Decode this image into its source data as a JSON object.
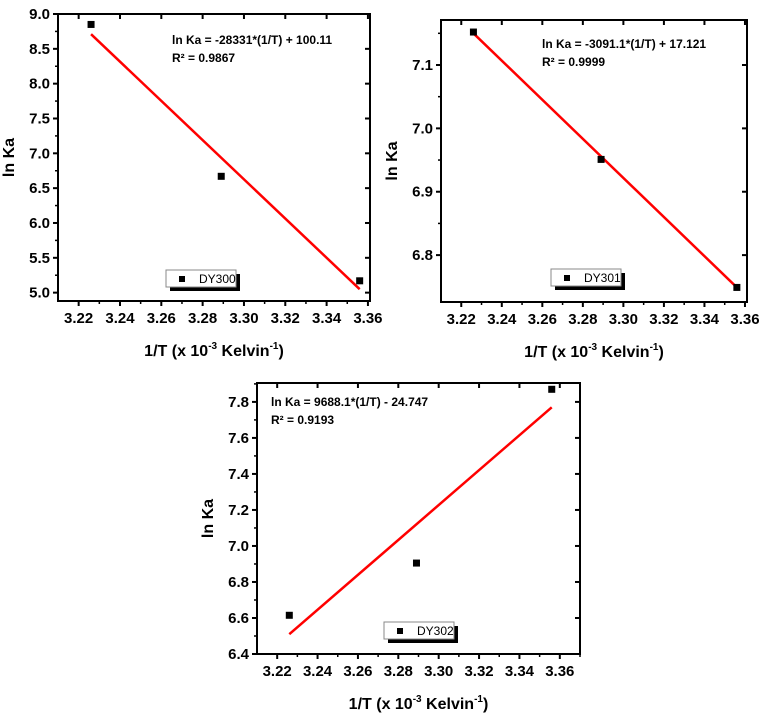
{
  "chart_data": [
    {
      "type": "scatter",
      "title": "",
      "xlabel": "1/T (x 10^-3 Kelvin^-1)",
      "ylabel": "ln Ka",
      "xlim": [
        3.21,
        3.361
      ],
      "ylim": [
        4.88,
        9.0
      ],
      "xticks": [
        "3.22",
        "3.24",
        "3.26",
        "3.28",
        "3.30",
        "3.32",
        "3.34",
        "3.36"
      ],
      "yticks": [
        "5.0",
        "5.5",
        "6.0",
        "6.5",
        "7.0",
        "7.5",
        "8.0",
        "8.5",
        "9.0"
      ],
      "grid": false,
      "legend": {
        "entries": [
          "DY300"
        ],
        "position": "bottom-center"
      },
      "series": [
        {
          "name": "DY300",
          "x": [
            3.226,
            3.289,
            3.356
          ],
          "y": [
            8.85,
            6.67,
            5.17
          ],
          "marker": "square",
          "color": "#000000"
        }
      ],
      "fit": {
        "x": [
          3.226,
          3.356
        ],
        "y": [
          8.71,
          5.05
        ],
        "color": "#ff0000"
      },
      "annotations": [
        "ln Ka = -28331*(1/T) + 100.11",
        "R² = 0.9867"
      ]
    },
    {
      "type": "scatter",
      "title": "",
      "xlabel": "1/T (x 10^-3 Kelvin^-1)",
      "ylabel": "ln Ka",
      "xlim": [
        3.21,
        3.361
      ],
      "ylim": [
        6.726,
        7.171
      ],
      "xticks": [
        "3.22",
        "3.24",
        "3.26",
        "3.28",
        "3.30",
        "3.32",
        "3.34",
        "3.36"
      ],
      "yticks": [
        "6.8",
        "6.9",
        "7.0",
        "7.1"
      ],
      "grid": false,
      "legend": {
        "entries": [
          "DY301"
        ],
        "position": "bottom-center"
      },
      "series": [
        {
          "name": "DY301",
          "x": [
            3.226,
            3.289,
            3.356
          ],
          "y": [
            7.152,
            6.951,
            6.749
          ],
          "marker": "square",
          "color": "#000000"
        }
      ],
      "fit": {
        "x": [
          3.226,
          3.356
        ],
        "y": [
          7.15,
          6.749
        ],
        "color": "#ff0000"
      },
      "annotations": [
        "ln Ka = -3091.1*(1/T) + 17.121",
        "R² = 0.9999"
      ]
    },
    {
      "type": "scatter",
      "title": "",
      "xlabel": "1/T (x 10^-3 Kelvin^-1)",
      "ylabel": "ln Ka",
      "xlim": [
        3.21,
        3.37
      ],
      "ylim": [
        6.4,
        7.905
      ],
      "xticks": [
        "3.22",
        "3.24",
        "3.26",
        "3.28",
        "3.30",
        "3.32",
        "3.34",
        "3.36"
      ],
      "yticks": [
        "6.4",
        "6.6",
        "6.8",
        "7.0",
        "7.2",
        "7.4",
        "7.6",
        "7.8"
      ],
      "grid": false,
      "legend": {
        "entries": [
          "DY302"
        ],
        "position": "bottom-center"
      },
      "series": [
        {
          "name": "DY302",
          "x": [
            3.226,
            3.289,
            3.356
          ],
          "y": [
            6.615,
            6.905,
            7.87
          ],
          "marker": "square",
          "color": "#000000"
        }
      ],
      "fit": {
        "x": [
          3.226,
          3.356
        ],
        "y": [
          6.51,
          7.77
        ],
        "color": "#ff0000"
      },
      "annotations": [
        "ln Ka = 9688.1*(1/T) - 24.747",
        "R² = 0.9193"
      ]
    }
  ],
  "labels": {
    "x_axis_main": "1/T (x 10",
    "x_axis_exp1": "-3",
    "x_axis_mid": " Kelvin",
    "x_axis_exp2": "-1",
    "x_axis_end": ")",
    "y_axis": "ln Ka"
  }
}
